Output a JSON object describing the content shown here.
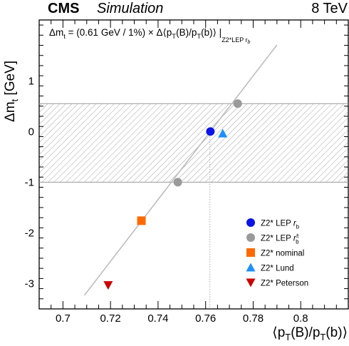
{
  "header": {
    "experiment": "CMS",
    "status": "Simulation",
    "energy": "8 TeV"
  },
  "formula": {
    "lhs": "Δm",
    "lhs_sub": "t",
    "mid": " = (0.61 GeV / 1%) × Δ⟨p",
    "sub1": "T",
    "mid2": "(B)/p",
    "sub2": "T",
    "rhs": "(b)⟩ |",
    "tail_sub": "Z2*LEP r",
    "tail_subsub": "b"
  },
  "colors": {
    "lep_rb": "#0a14e6",
    "lep_rb_var": "#9a9a9a",
    "nominal": "#ff6a00",
    "lund": "#1e90ff",
    "peterson": "#cc0000",
    "line": "#bdbdbd",
    "band_hatch": "#8c8c8c"
  },
  "legend": {
    "entries": [
      {
        "label": "Z2* LEP r",
        "sub": "b",
        "sup": "",
        "marker": "circle",
        "color_key": "lep_rb"
      },
      {
        "label": "Z2* LEP r",
        "sub": "b",
        "sup": "±",
        "marker": "circle",
        "color_key": "lep_rb_var"
      },
      {
        "label": "Z2* nominal",
        "sub": "",
        "sup": "",
        "marker": "square",
        "color_key": "nominal"
      },
      {
        "label": "Z2* Lund",
        "sub": "",
        "sup": "",
        "marker": "triangle-up",
        "color_key": "lund"
      },
      {
        "label": "Z2* Peterson",
        "sub": "",
        "sup": "",
        "marker": "triangle-down",
        "color_key": "peterson"
      }
    ]
  },
  "chart_data": {
    "type": "scatter",
    "title": "",
    "xlabel": "⟨p_T(B)/p_T(b)⟩",
    "ylabel": "Δm_t [GeV]",
    "xlim": [
      0.69,
      0.82
    ],
    "ylim": [
      -3.5,
      2.2
    ],
    "x_ticks": [
      0.7,
      0.72,
      0.74,
      0.76,
      0.78,
      0.8
    ],
    "x_tick_labels": [
      "0.7",
      "0.72",
      "0.74",
      "0.76",
      "0.78",
      "0.8"
    ],
    "y_ticks": [
      -3,
      -2,
      -1,
      0,
      1
    ],
    "y_tick_labels": [
      "-3",
      "-2",
      "-1",
      "0",
      "1"
    ],
    "grid": false,
    "legend_position": "bottom-right",
    "fit_line": {
      "slope": 61,
      "x0": 0.762,
      "x_range": [
        0.709,
        0.79
      ]
    },
    "uncertainty_band": {
      "y_low": -1.0,
      "y_high": 0.55
    },
    "reference_x": 0.7618,
    "series": [
      {
        "name": "Z2* LEP r_b",
        "x": [
          0.762
        ],
        "y": [
          0.0
        ]
      },
      {
        "name": "Z2* LEP r_b^±",
        "x": [
          0.7483,
          0.7735
        ],
        "y": [
          -1.0,
          0.55
        ]
      },
      {
        "name": "Z2* nominal",
        "x": [
          0.733
        ],
        "y": [
          -1.76
        ]
      },
      {
        "name": "Z2* Lund",
        "x": [
          0.7672
        ],
        "y": [
          -0.04
        ]
      },
      {
        "name": "Z2* Peterson",
        "x": [
          0.719
        ],
        "y": [
          -3.03
        ]
      }
    ]
  }
}
